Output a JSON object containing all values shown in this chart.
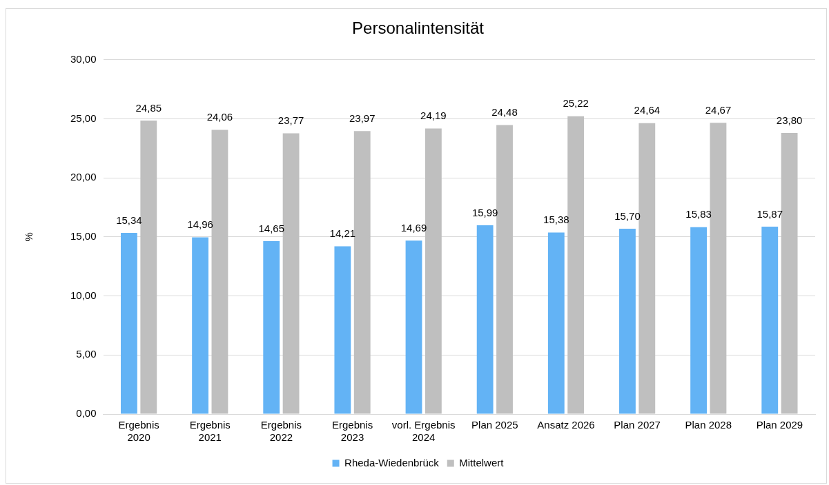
{
  "chart_data": {
    "type": "bar",
    "title": "Personalintensität",
    "ylabel": "%",
    "categories": [
      "Ergebnis 2020",
      "Ergebnis 2021",
      "Ergebnis 2022",
      "Ergebnis 2023",
      "vorl. Ergebnis 2024",
      "Plan 2025",
      "Ansatz 2026",
      "Plan 2027",
      "Plan 2028",
      "Plan 2029"
    ],
    "series": [
      {
        "name": "Rheda-Wiedenbrück",
        "color": "#63b3f5",
        "values": [
          15.34,
          14.96,
          14.65,
          14.21,
          14.69,
          15.99,
          15.38,
          15.7,
          15.83,
          15.87
        ],
        "value_labels": [
          "15,34",
          "14,96",
          "14,65",
          "14,21",
          "14,69",
          "15,99",
          "15,38",
          "15,70",
          "15,83",
          "15,87"
        ]
      },
      {
        "name": "Mittelwert",
        "color": "#bfbfbf",
        "values": [
          24.85,
          24.06,
          23.77,
          23.97,
          24.19,
          24.48,
          25.22,
          24.64,
          24.67,
          23.8
        ],
        "value_labels": [
          "24,85",
          "24,06",
          "23,77",
          "23,97",
          "24,19",
          "24,48",
          "25,22",
          "24,64",
          "24,67",
          "23,80"
        ]
      }
    ],
    "ylim": [
      0,
      30
    ],
    "yticks": [
      {
        "value": 0,
        "label": "0,00"
      },
      {
        "value": 5,
        "label": "5,00"
      },
      {
        "value": 10,
        "label": "10,00"
      },
      {
        "value": 15,
        "label": "15,00"
      },
      {
        "value": 20,
        "label": "20,00"
      },
      {
        "value": 25,
        "label": "25,00"
      },
      {
        "value": 30,
        "label": "30,00"
      }
    ],
    "grid": "y",
    "legend": "bottom"
  }
}
